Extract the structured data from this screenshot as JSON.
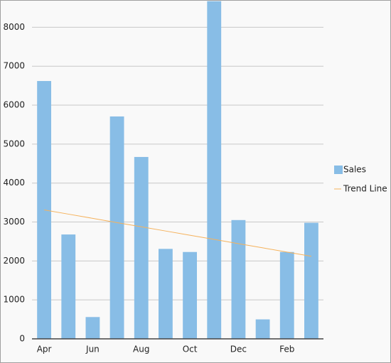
{
  "chart_data": {
    "type": "bar",
    "categories": [
      "Apr",
      null,
      "Jun",
      null,
      "Aug",
      null,
      "Oct",
      null,
      "Dec",
      null,
      "Feb",
      null
    ],
    "series": [
      {
        "name": "Sales",
        "type": "bar",
        "color": "#88bde6",
        "values": [
          6620,
          2680,
          560,
          5710,
          4670,
          2310,
          2230,
          8670,
          3050,
          500,
          2230,
          2980
        ]
      },
      {
        "name": "Trend Line",
        "type": "line",
        "color": "#f5b25c",
        "values": [
          3310,
          3202,
          3094,
          2985,
          2877,
          2769,
          2661,
          2553,
          2445,
          2336,
          2228,
          2120
        ]
      }
    ],
    "ylim": [
      0,
      8700
    ],
    "yticks": [
      0,
      1000,
      2000,
      3000,
      4000,
      5000,
      6000,
      7000,
      8000
    ],
    "grid": true,
    "legend": "right"
  }
}
